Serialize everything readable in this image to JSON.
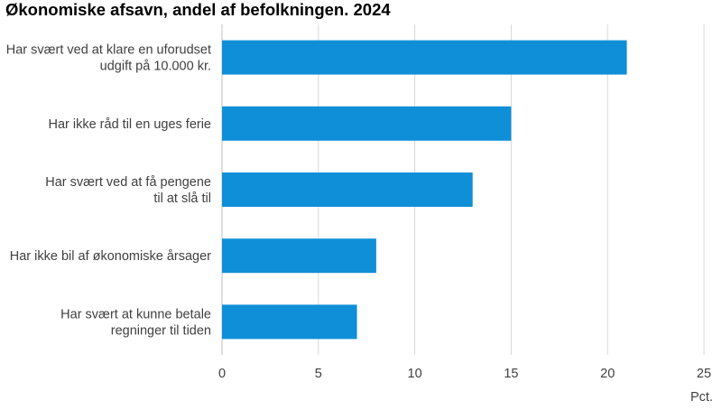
{
  "title": "Økonomiske afsavn, andel af befolkningen. 2024",
  "colors": {
    "bar": "#0f8fd8",
    "grid": "#d9d9d9",
    "axis": "#bfbfbf",
    "text": "#404040"
  },
  "chart_data": {
    "type": "bar",
    "orientation": "horizontal",
    "title": "Økonomiske afsavn, andel af befolkningen. 2024",
    "categories": [
      [
        "Har svært ved at klare en uforudset",
        "udgift på 10.000 kr."
      ],
      [
        "Har ikke råd til en uges ferie"
      ],
      [
        "Har svært ved at få pengene",
        "til at slå til"
      ],
      [
        "Har ikke bil af økonomiske årsager"
      ],
      [
        "Har svært at kunne betale",
        "regninger til tiden"
      ]
    ],
    "values": [
      21,
      15,
      13,
      8,
      7
    ],
    "xlim": [
      0,
      25
    ],
    "xticks": [
      0,
      5,
      10,
      15,
      20,
      25
    ],
    "xunit": "Pct.",
    "grid": true
  }
}
